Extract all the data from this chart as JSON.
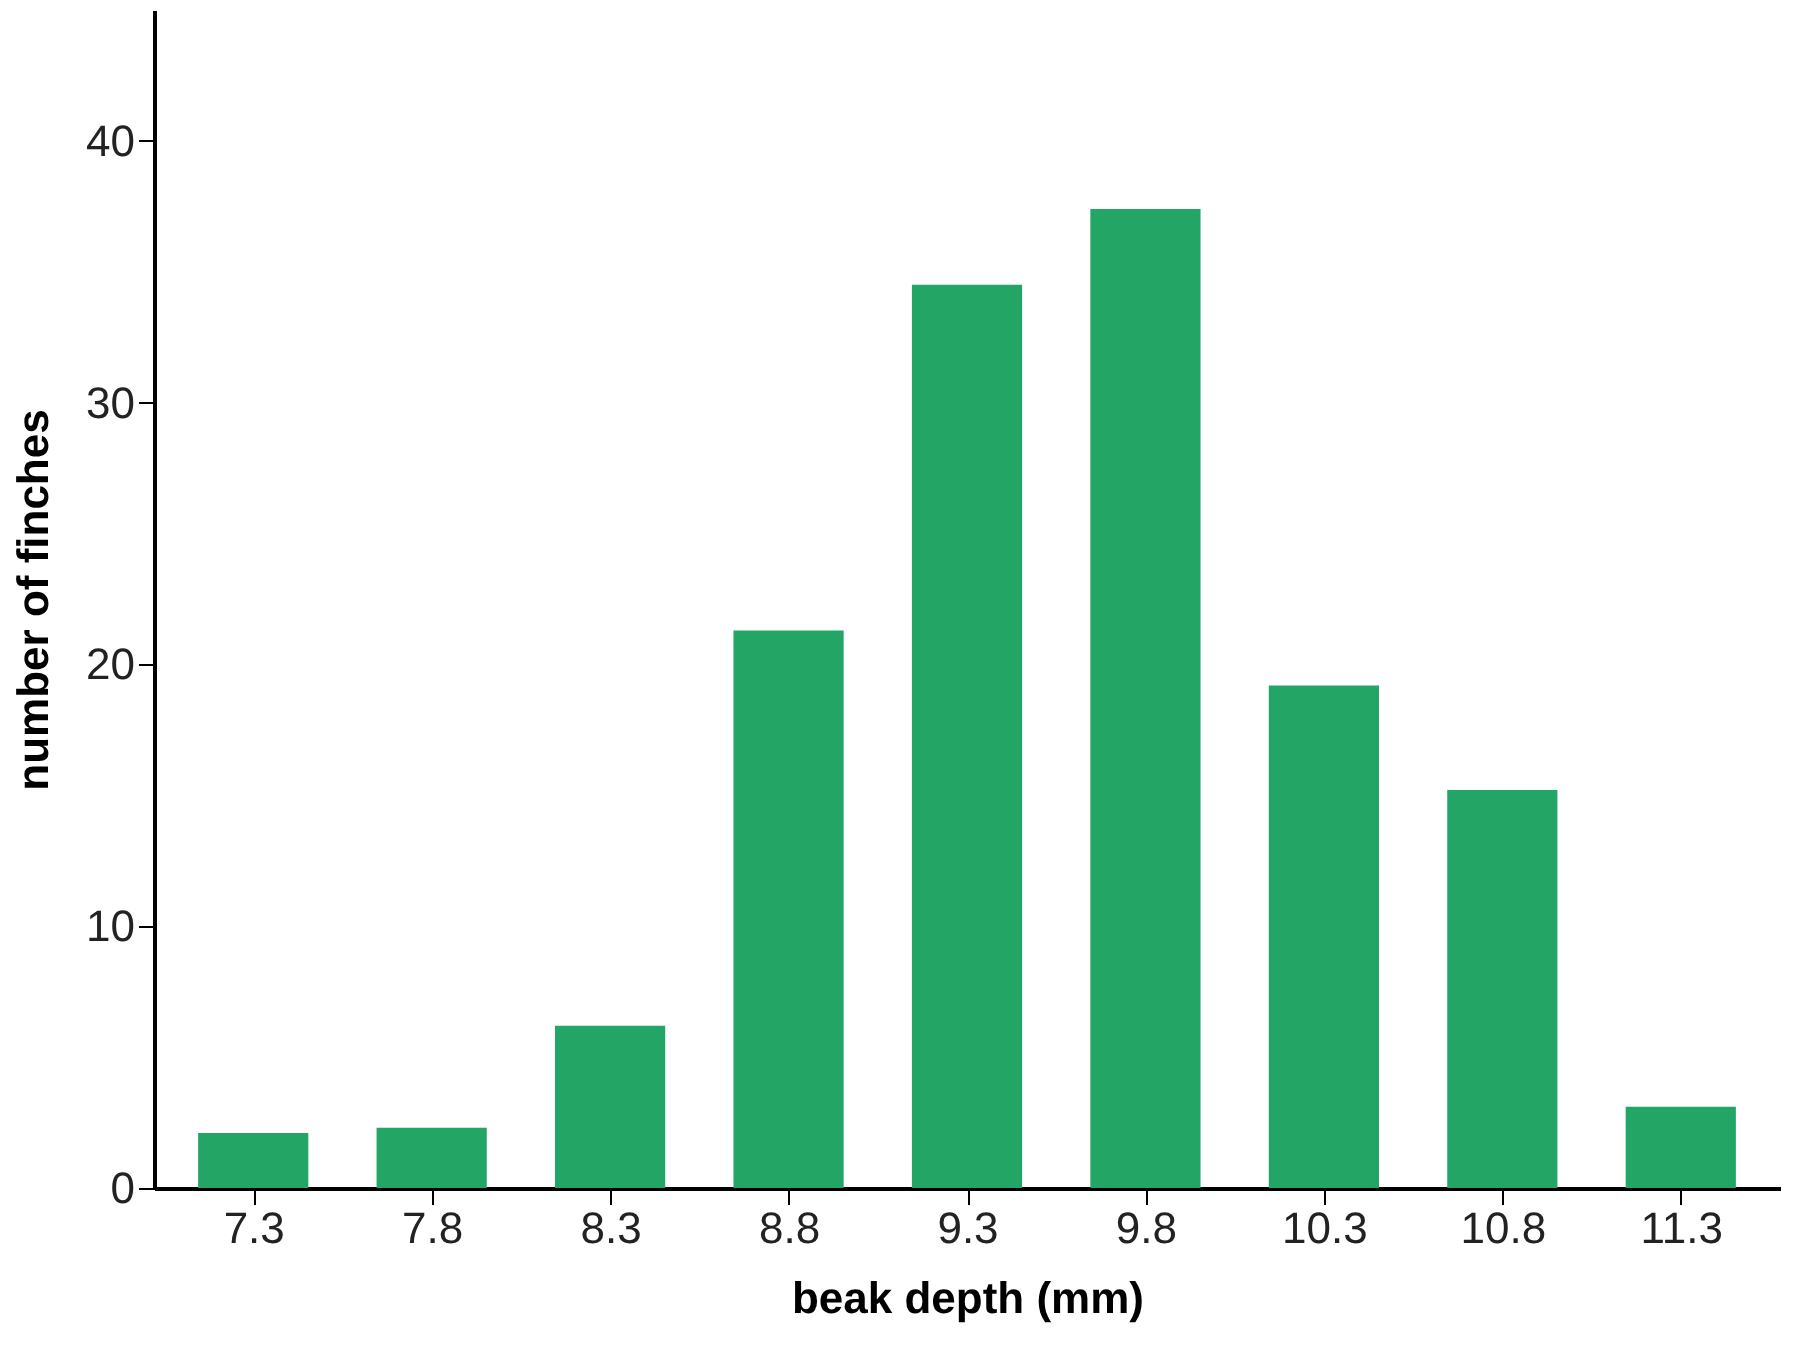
{
  "chart_data": {
    "type": "bar",
    "xlabel": "beak depth (mm)",
    "ylabel": "number of finches",
    "categories": [
      "7.3",
      "7.8",
      "8.3",
      "8.8",
      "9.3",
      "9.8",
      "10.3",
      "10.8",
      "11.3"
    ],
    "values": [
      2.1,
      2.3,
      6.2,
      21.3,
      34.5,
      37.4,
      19.2,
      15.2,
      3.1
    ],
    "color": "#23a566",
    "ylim": [
      0,
      45
    ],
    "yticks": [
      0,
      10,
      20,
      30,
      40
    ],
    "grid": false
  }
}
